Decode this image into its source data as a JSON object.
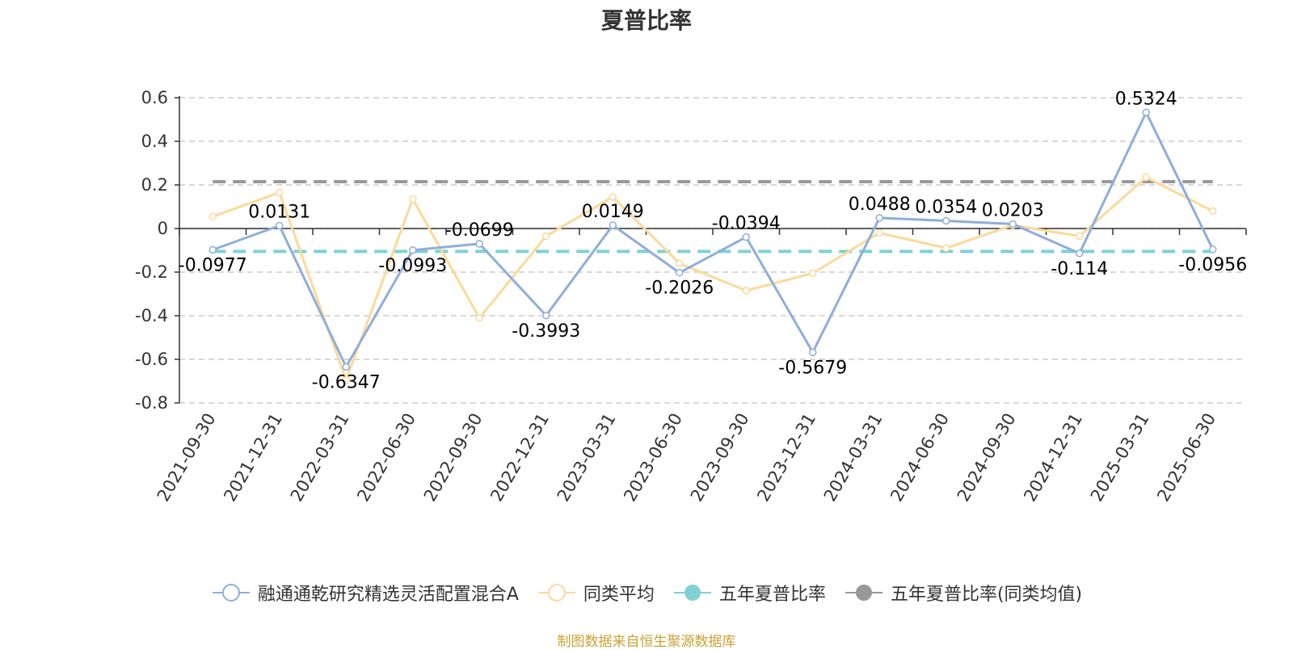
{
  "chart_data": {
    "type": "line",
    "title": "夏普比率",
    "categories": [
      "2021-09-30",
      "2021-12-31",
      "2022-03-31",
      "2022-06-30",
      "2022-09-30",
      "2022-12-31",
      "2023-03-31",
      "2023-06-30",
      "2023-09-30",
      "2023-12-31",
      "2024-03-31",
      "2024-06-30",
      "2024-09-30",
      "2024-12-31",
      "2025-03-31",
      "2025-06-30"
    ],
    "ylim": [
      -0.8,
      0.6
    ],
    "yticks": [
      "0.6",
      "0.4",
      "0.2",
      "0",
      "-0.2",
      "-0.4",
      "-0.6",
      "-0.8"
    ],
    "grid": true,
    "legend_position": "bottom",
    "series": [
      {
        "name": "融通通乾研究精选灵活配置混合A",
        "color": "#8eaedb",
        "values": [
          -0.0977,
          0.0131,
          -0.6347,
          -0.0993,
          -0.0699,
          -0.3993,
          0.0149,
          -0.2026,
          -0.0394,
          -0.5679,
          0.0488,
          0.0354,
          0.0203,
          -0.114,
          0.5324,
          -0.0956
        ],
        "labels": [
          "-0.0977",
          "0.0131",
          "-0.6347",
          "-0.0993",
          "-0.0699",
          "-0.3993",
          "0.0149",
          "-0.2026",
          "-0.0394",
          "-0.5679",
          "0.0488",
          "0.0354",
          "0.0203",
          "-0.114",
          "0.5324",
          "-0.0956"
        ]
      },
      {
        "name": "同类平均",
        "color": "#fcd99a",
        "values": [
          0.055,
          0.165,
          -0.695,
          0.135,
          -0.41,
          -0.035,
          0.145,
          -0.16,
          -0.285,
          -0.205,
          -0.02,
          -0.09,
          0.015,
          -0.035,
          0.235,
          0.08
        ]
      },
      {
        "name": "五年夏普比率",
        "color": "#7fd1d3",
        "value": -0.105
      },
      {
        "name": "五年夏普比率(同类均值)",
        "color": "#999999",
        "value": 0.215
      }
    ]
  },
  "source_note": "制图数据来自恒生聚源数据库",
  "source_color": "#c8a234"
}
